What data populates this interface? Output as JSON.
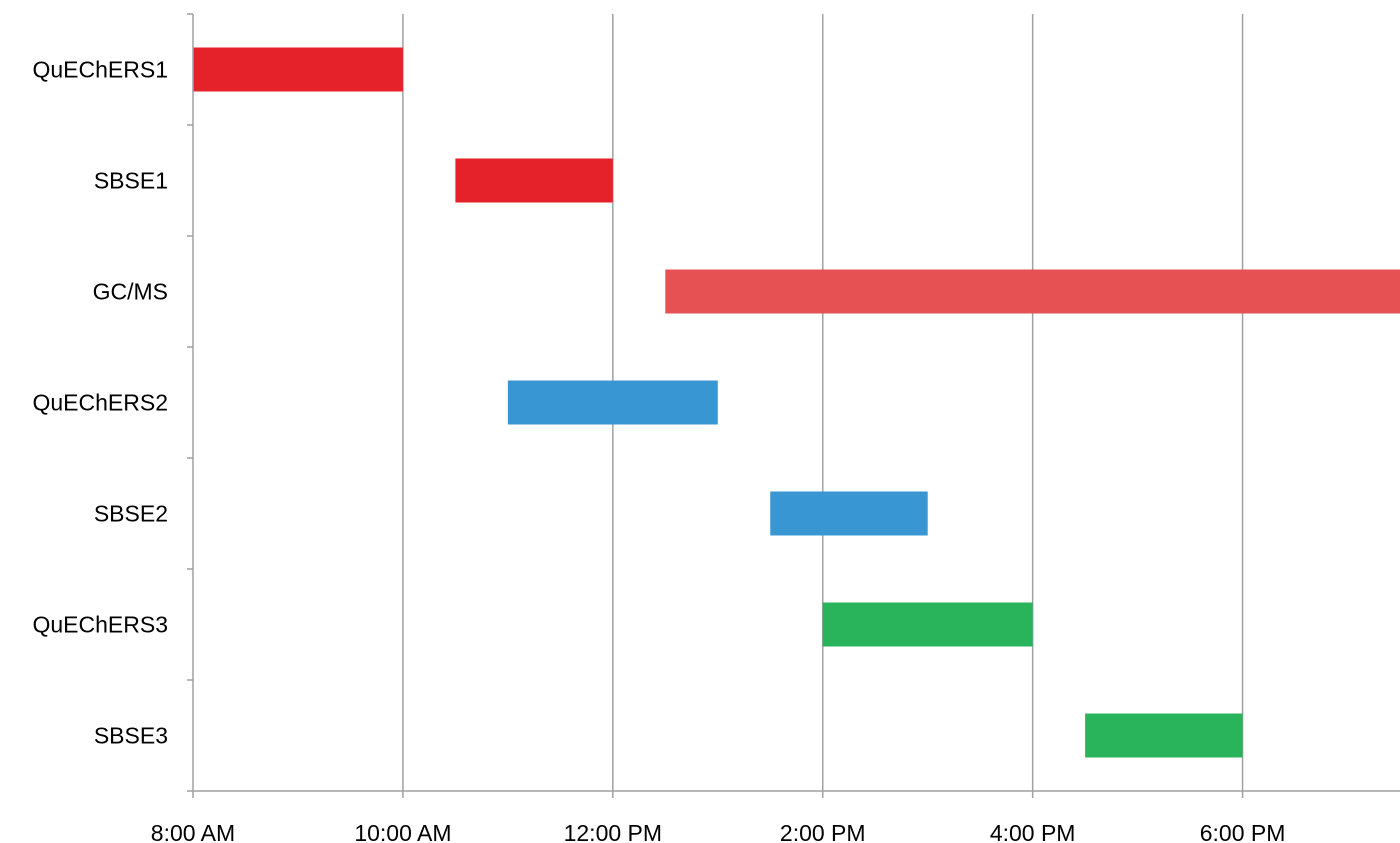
{
  "chart_data": {
    "type": "bar",
    "orientation": "horizontal",
    "subtype": "gantt",
    "title": "",
    "xlabel": "",
    "ylabel": "",
    "x_unit": "hours since midnight",
    "xlim": [
      8,
      19.5
    ],
    "x_ticks": [
      {
        "value": 8,
        "label": "8:00 AM"
      },
      {
        "value": 10,
        "label": "10:00 AM"
      },
      {
        "value": 12,
        "label": "12:00 PM"
      },
      {
        "value": 14,
        "label": "2:00 PM"
      },
      {
        "value": 16,
        "label": "4:00 PM"
      },
      {
        "value": 18,
        "label": "6:00 PM"
      }
    ],
    "grid": "vertical",
    "legend": "none",
    "tasks": [
      {
        "label": "QuEChERS1",
        "start": 8.0,
        "end": 10.0,
        "color": "#e52229"
      },
      {
        "label": "SBSE1",
        "start": 10.5,
        "end": 12.0,
        "color": "#e52229"
      },
      {
        "label": "GC/MS",
        "start": 12.5,
        "end": 19.5,
        "color": "#e65253"
      },
      {
        "label": "QuEChERS2",
        "start": 11.0,
        "end": 13.0,
        "color": "#3897d3"
      },
      {
        "label": "SBSE2",
        "start": 13.5,
        "end": 15.0,
        "color": "#3897d3"
      },
      {
        "label": "QuEChERS3",
        "start": 14.0,
        "end": 16.0,
        "color": "#29b35a"
      },
      {
        "label": "SBSE3",
        "start": 16.5,
        "end": 18.0,
        "color": "#29b35a"
      }
    ],
    "colors": {
      "gridline": "#a0a0a0",
      "axis": "#a0a0a0",
      "text": "#000000"
    }
  }
}
